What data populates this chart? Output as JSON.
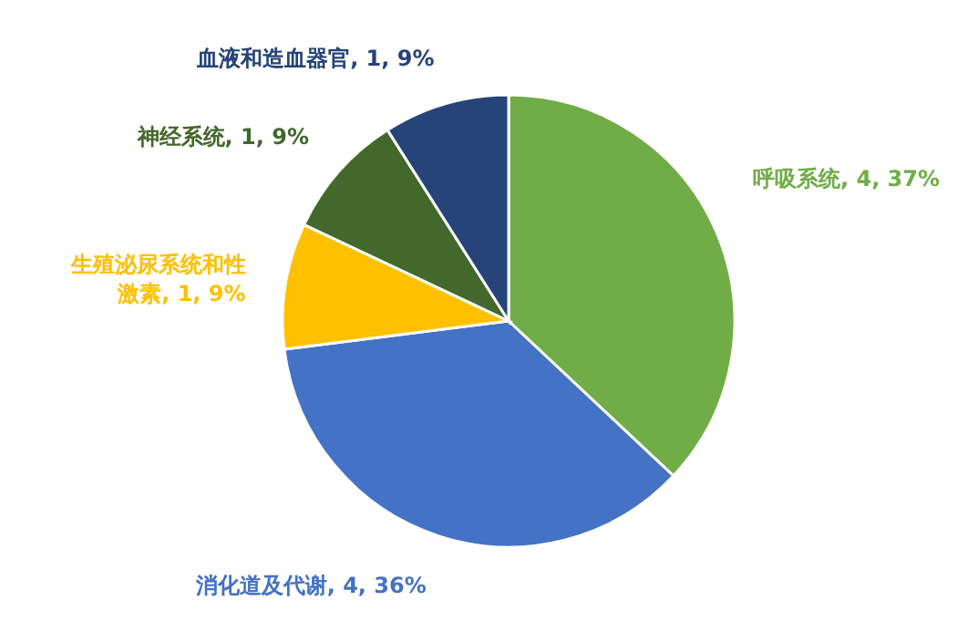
{
  "chart_data": {
    "type": "pie",
    "categories": [
      "呼吸系统",
      "消化道及代谢",
      "生殖泌尿系统和性激素",
      "神经系统",
      "血液和造血器官"
    ],
    "values": [
      37,
      36,
      9,
      9,
      9
    ],
    "value_labels": [
      "4, 37%",
      "4, 36%",
      "1, 9%",
      "1, 9%",
      "1, 9%"
    ],
    "colors": [
      "#70ad47",
      "#4472c4",
      "#ffc000",
      "#43682b",
      "#264478"
    ]
  }
}
